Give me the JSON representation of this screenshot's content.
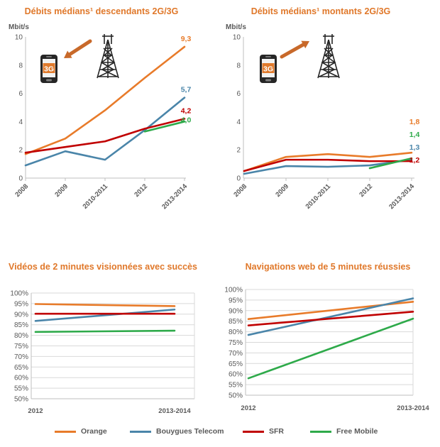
{
  "colors": {
    "orange": "#e87b2a",
    "bouygues": "#4a85a9",
    "sfr": "#c00000",
    "free": "#2eaa4a",
    "title": "#e0782a",
    "arrow": "#c8692a",
    "axis": "#bfbfbf"
  },
  "legend": [
    {
      "name": "Orange",
      "color": "#e87b2a"
    },
    {
      "name": "Bouygues Telecom",
      "color": "#4a85a9"
    },
    {
      "name": "SFR",
      "color": "#c00000"
    },
    {
      "name": "Free Mobile",
      "color": "#2eaa4a"
    }
  ],
  "badge_text": "3G",
  "chart_data": [
    {
      "type": "line",
      "title": "Débits médians¹ descendants 2G/3G",
      "ylabel": "Mbit/s",
      "ylim": [
        0,
        10
      ],
      "yticks": [
        "0",
        "2",
        "4",
        "6",
        "8",
        "10"
      ],
      "categories": [
        "2008",
        "2009",
        "2010-2011",
        "2012",
        "2013-2014"
      ],
      "icon": {
        "arrow_direction": "down"
      },
      "series": [
        {
          "name": "Orange",
          "color": "#e87b2a",
          "values": [
            1.7,
            2.8,
            4.8,
            7.1,
            9.3
          ],
          "end_label": "9,3"
        },
        {
          "name": "Bouygues Telecom",
          "color": "#4a85a9",
          "values": [
            0.9,
            1.9,
            1.3,
            3.4,
            5.7
          ],
          "end_label": "5,7"
        },
        {
          "name": "SFR",
          "color": "#c00000",
          "values": [
            1.8,
            2.2,
            2.6,
            3.5,
            4.2
          ],
          "end_label": "4,2"
        },
        {
          "name": "Free Mobile",
          "color": "#2eaa4a",
          "values": [
            null,
            null,
            null,
            3.3,
            4.0
          ],
          "end_label": "4,0"
        }
      ]
    },
    {
      "type": "line",
      "title": "Débits médians¹ montants 2G/3G",
      "ylabel": "Mbit/s",
      "ylim": [
        0,
        10
      ],
      "yticks": [
        "0",
        "2",
        "4",
        "6",
        "8",
        "10"
      ],
      "categories": [
        "2008",
        "2009",
        "2010-2011",
        "2012",
        "2013-2014"
      ],
      "icon": {
        "arrow_direction": "up"
      },
      "series": [
        {
          "name": "Orange",
          "color": "#e87b2a",
          "values": [
            0.5,
            1.5,
            1.7,
            1.5,
            1.8
          ],
          "end_label": "1,8"
        },
        {
          "name": "Bouygues Telecom",
          "color": "#4a85a9",
          "values": [
            0.3,
            0.85,
            0.8,
            0.9,
            1.3
          ],
          "end_label": "1,3"
        },
        {
          "name": "SFR",
          "color": "#c00000",
          "values": [
            0.5,
            1.3,
            1.3,
            1.2,
            1.2
          ],
          "end_label": "1,2"
        },
        {
          "name": "Free Mobile",
          "color": "#2eaa4a",
          "values": [
            null,
            null,
            null,
            0.7,
            1.4
          ],
          "end_label": "1,4"
        }
      ]
    },
    {
      "type": "line",
      "title": "Vidéos de 2 minutes visionnées avec succès",
      "ylim": [
        50,
        100
      ],
      "yticks": [
        "50%",
        "55%",
        "60%",
        "65%",
        "70%",
        "75%",
        "80%",
        "85%",
        "90%",
        "95%",
        "100%"
      ],
      "categories": [
        "2012",
        "2013-2014"
      ],
      "series": [
        {
          "name": "Orange",
          "color": "#e87b2a",
          "values": [
            94.8,
            93.8
          ]
        },
        {
          "name": "Bouygues Telecom",
          "color": "#4a85a9",
          "values": [
            86.8,
            92.2
          ]
        },
        {
          "name": "SFR",
          "color": "#c00000",
          "values": [
            90.2,
            90.2
          ]
        },
        {
          "name": "Free Mobile",
          "color": "#2eaa4a",
          "values": [
            81.6,
            82.2
          ]
        }
      ]
    },
    {
      "type": "line",
      "title": "Navigations web de 5 minutes réussies",
      "ylim": [
        50,
        100
      ],
      "yticks": [
        "50%",
        "55%",
        "60%",
        "65%",
        "70%",
        "75%",
        "80%",
        "85%",
        "90%",
        "95%",
        "100%"
      ],
      "categories": [
        "2012",
        "2013-2014"
      ],
      "series": [
        {
          "name": "Orange",
          "color": "#e87b2a",
          "values": [
            86.0,
            94.2
          ]
        },
        {
          "name": "Bouygues Telecom",
          "color": "#4a85a9",
          "values": [
            78.5,
            95.8
          ]
        },
        {
          "name": "SFR",
          "color": "#c00000",
          "values": [
            83.0,
            89.5
          ]
        },
        {
          "name": "Free Mobile",
          "color": "#2eaa4a",
          "values": [
            58.0,
            86.2
          ]
        }
      ]
    }
  ]
}
